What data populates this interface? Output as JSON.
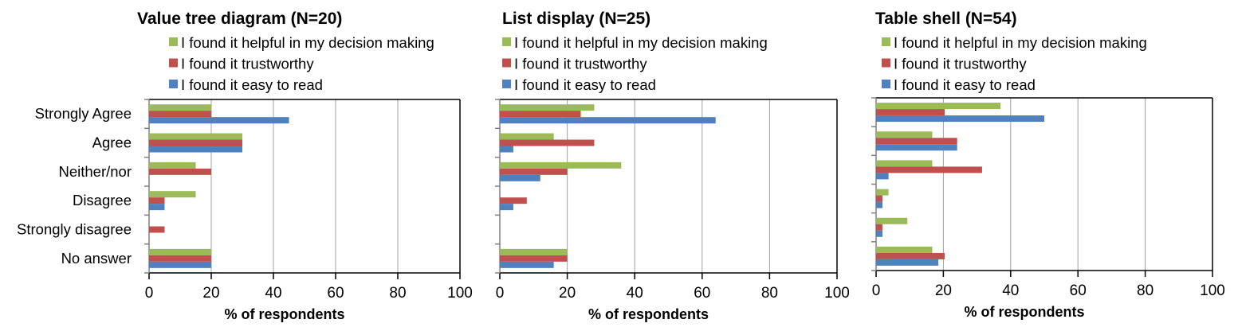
{
  "chart_data": [
    {
      "type": "bar",
      "orientation": "horizontal",
      "title": "Value tree diagram (N=20)",
      "xlabel": "% of respondents",
      "ylabel": "",
      "xlim": [
        0,
        100
      ],
      "xticks": [
        "0",
        "20",
        "40",
        "60",
        "80",
        "100"
      ],
      "grid": true,
      "legend_placement": "top",
      "categories": [
        "Strongly Agree",
        "Agree",
        "Neither/nor",
        "Disagree",
        "Strongly disagree",
        "No answer"
      ],
      "series": [
        {
          "name": "I found it helpful in my decision making",
          "color": "#9bbb59",
          "values": [
            20,
            30,
            15,
            15,
            0,
            20
          ]
        },
        {
          "name": "I found it trustworthy",
          "color": "#c0504d",
          "values": [
            20,
            30,
            20,
            5,
            5,
            20
          ]
        },
        {
          "name": "I found it easy to read",
          "color": "#4f81bd",
          "values": [
            45,
            30,
            0,
            5,
            0,
            20
          ]
        }
      ]
    },
    {
      "type": "bar",
      "orientation": "horizontal",
      "title": "List display (N=25)",
      "xlabel": "% of respondents",
      "ylabel": "",
      "xlim": [
        0,
        100
      ],
      "xticks": [
        "0",
        "20",
        "40",
        "60",
        "80",
        "100"
      ],
      "grid": true,
      "legend_placement": "top",
      "categories": [
        "Strongly Agree",
        "Agree",
        "Neither/nor",
        "Disagree",
        "Strongly disagree",
        "No answer"
      ],
      "series": [
        {
          "name": "I found it helpful in my decision making",
          "color": "#9bbb59",
          "values": [
            28,
            16,
            36,
            0,
            0,
            20
          ]
        },
        {
          "name": "I found it trustworthy",
          "color": "#c0504d",
          "values": [
            24,
            28,
            20,
            8,
            0,
            20
          ]
        },
        {
          "name": "I found it easy to read",
          "color": "#4f81bd",
          "values": [
            64,
            4,
            12,
            4,
            0,
            16
          ]
        }
      ]
    },
    {
      "type": "bar",
      "orientation": "horizontal",
      "title": "Table shell (N=54)",
      "xlabel": "% of respondents",
      "ylabel": "",
      "xlim": [
        0,
        100
      ],
      "xticks": [
        "0",
        "20",
        "40",
        "60",
        "80",
        "100"
      ],
      "grid": true,
      "legend_placement": "top",
      "categories": [
        "Strongly Agree",
        "Agree",
        "Neither/nor",
        "Disagree",
        "Strongly disagree",
        "No answer"
      ],
      "series": [
        {
          "name": "I found it helpful in my decision making",
          "color": "#9bbb59",
          "values": [
            37.0,
            16.7,
            16.7,
            3.7,
            9.3,
            16.7
          ]
        },
        {
          "name": "I found it trustworthy",
          "color": "#c0504d",
          "values": [
            20.4,
            24.1,
            31.5,
            1.9,
            1.9,
            20.4
          ]
        },
        {
          "name": "I found it easy to read",
          "color": "#4f81bd",
          "values": [
            50.0,
            24.1,
            3.7,
            1.9,
            1.9,
            18.5
          ]
        }
      ]
    }
  ]
}
